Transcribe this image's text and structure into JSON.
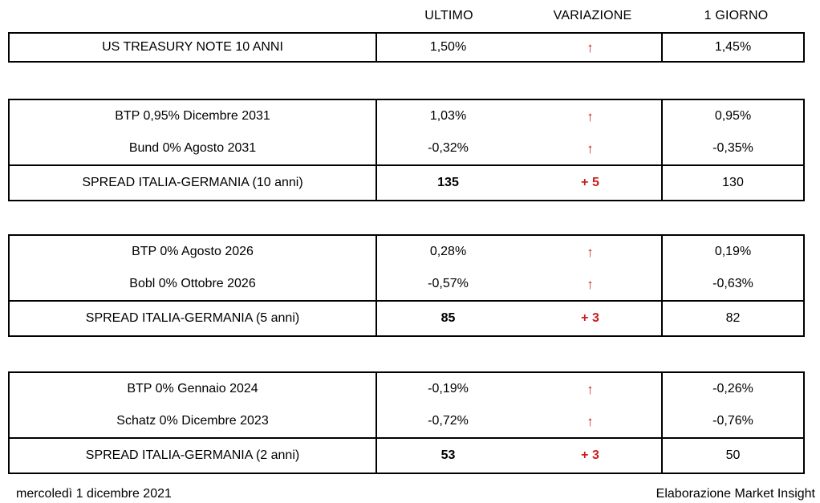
{
  "colors": {
    "accent_red": "#c81e1e",
    "border": "#000000",
    "text": "#000000",
    "background": "#ffffff"
  },
  "icons": {
    "up_arrow": "↑"
  },
  "header": {
    "ultimo": "ULTIMO",
    "variazione": "VARIAZIONE",
    "giorno": "1 GIORNO"
  },
  "groups": [
    {
      "name": "us-treasury",
      "rows": [
        {
          "label": "US TREASURY NOTE 10 ANNI",
          "ultimo": "1,50%",
          "variazione": "↑",
          "giorno": "1,45%"
        }
      ]
    },
    {
      "name": "spread-10-anni",
      "rows": [
        {
          "label": "BTP 0,95% Dicembre 2031",
          "ultimo": "1,03%",
          "variazione": "↑",
          "giorno": "0,95%"
        },
        {
          "label": "Bund 0% Agosto 2031",
          "ultimo": "-0,32%",
          "variazione": "↑",
          "giorno": "-0,35%"
        },
        {
          "label": "SPREAD ITALIA-GERMANIA (10 anni)",
          "ultimo": "135",
          "variazione": "+ 5",
          "giorno": "130"
        }
      ]
    },
    {
      "name": "spread-5-anni",
      "rows": [
        {
          "label": "BTP 0% Agosto 2026",
          "ultimo": "0,28%",
          "variazione": "↑",
          "giorno": "0,19%"
        },
        {
          "label": "Bobl 0% Ottobre 2026",
          "ultimo": "-0,57%",
          "variazione": "↑",
          "giorno": "-0,63%"
        },
        {
          "label": "SPREAD ITALIA-GERMANIA (5 anni)",
          "ultimo": "85",
          "variazione": "+ 3",
          "giorno": "82"
        }
      ]
    },
    {
      "name": "spread-2-anni",
      "rows": [
        {
          "label": "BTP 0% Gennaio 2024",
          "ultimo": "-0,19%",
          "variazione": "↑",
          "giorno": "-0,26%"
        },
        {
          "label": "Schatz 0% Dicembre 2023",
          "ultimo": "-0,72%",
          "variazione": "↑",
          "giorno": "-0,76%"
        },
        {
          "label": "SPREAD ITALIA-GERMANIA (2 anni)",
          "ultimo": "53",
          "variazione": "+ 3",
          "giorno": "50"
        }
      ]
    }
  ],
  "footer": {
    "date": "mercoledì 1 dicembre 2021",
    "credit": "Elaborazione Market Insight"
  },
  "chart_data": {
    "type": "table",
    "columns": [
      "",
      "ULTIMO",
      "VARIAZIONE",
      "1 GIORNO"
    ],
    "rows": [
      [
        "US TREASURY NOTE 10 ANNI",
        "1,50%",
        "↑",
        "1,45%"
      ],
      [
        "BTP 0,95% Dicembre 2031",
        "1,03%",
        "↑",
        "0,95%"
      ],
      [
        "Bund 0% Agosto 2031",
        "-0,32%",
        "↑",
        "-0,35%"
      ],
      [
        "SPREAD ITALIA-GERMANIA (10 anni)",
        "135",
        "+ 5",
        "130"
      ],
      [
        "BTP 0% Agosto 2026",
        "0,28%",
        "↑",
        "0,19%"
      ],
      [
        "Bobl 0% Ottobre 2026",
        "-0,57%",
        "↑",
        "-0,63%"
      ],
      [
        "SPREAD ITALIA-GERMANIA (5 anni)",
        "85",
        "+ 3",
        "82"
      ],
      [
        "BTP 0% Gennaio 2024",
        "-0,19%",
        "↑",
        "-0,26%"
      ],
      [
        "Schatz 0% Dicembre 2023",
        "-0,72%",
        "↑",
        "-0,76%"
      ],
      [
        "SPREAD ITALIA-GERMANIA (2 anni)",
        "53",
        "+ 3",
        "50"
      ]
    ],
    "notes": {
      "spread_rows_bold": true,
      "variation_color": "#c81e1e",
      "date": "mercoledì 1 dicembre 2021",
      "attribution": "Elaborazione Market Insight"
    }
  }
}
